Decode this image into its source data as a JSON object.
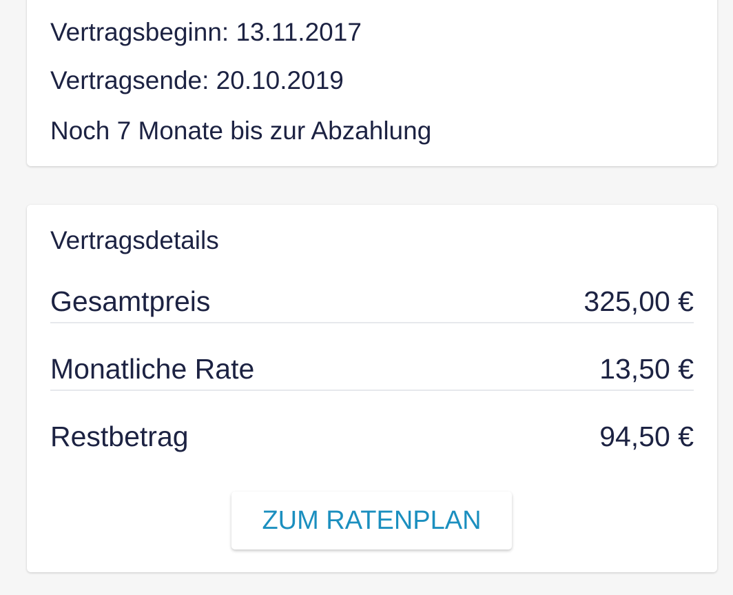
{
  "contract": {
    "start": "Vertragsbeginn: 13.11.2017",
    "end": "Vertragsende: 20.10.2019",
    "remaining_time": "Noch 7 Monate bis zur Abzahlung"
  },
  "details": {
    "title": "Vertragsdetails",
    "rows": [
      {
        "label": "Gesamtpreis",
        "value": "325,00 €"
      },
      {
        "label": "Monatliche Rate",
        "value": "13,50 €"
      },
      {
        "label": "Restbetrag",
        "value": "94,50 €"
      }
    ],
    "button_label": "ZUM RATENPLAN"
  },
  "colors": {
    "text": "#1c2242",
    "accent": "#1b8fbf",
    "background": "#f6f6f6"
  }
}
